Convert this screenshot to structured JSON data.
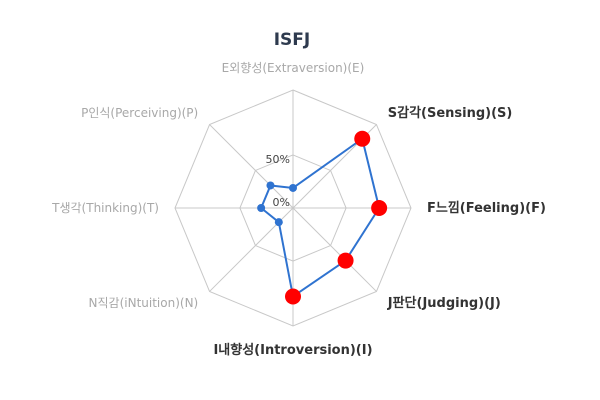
{
  "chart_data": {
    "type": "radar",
    "title": "ISFJ",
    "axes": [
      {
        "label": "E외향성(Extraversion)(E)",
        "value": 17,
        "highlighted": false
      },
      {
        "label": "S감각(Sensing)(S)",
        "value": 83,
        "highlighted": true
      },
      {
        "label": "F느낌(Feeling)(F)",
        "value": 73,
        "highlighted": true
      },
      {
        "label": "J판단(Judging)(J)",
        "value": 63,
        "highlighted": true
      },
      {
        "label": "I내향성(Introversion)(I)",
        "value": 75,
        "highlighted": true
      },
      {
        "label": "N직감(iNtuition)(N)",
        "value": 17,
        "highlighted": false
      },
      {
        "label": "T생각(Thinking)(T)",
        "value": 27,
        "highlighted": false
      },
      {
        "label": "P인식(Perceiving)(P)",
        "value": 27,
        "highlighted": false
      }
    ],
    "range": [
      0,
      100
    ],
    "tick_labels": [
      "0%",
      "50%"
    ],
    "line_color": "#2f73d0",
    "highlight_color": "#ff0000",
    "grid_color": "#c8c8c8"
  }
}
